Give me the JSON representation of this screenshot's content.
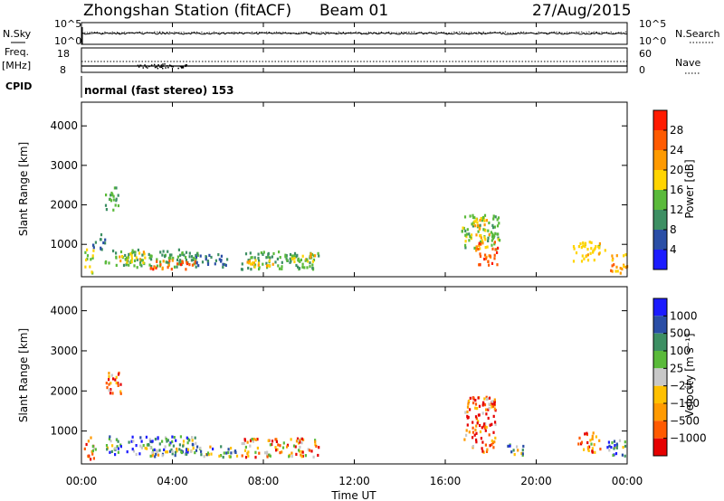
{
  "header": {
    "title": "Zhongshan Station (fitACF)",
    "beam": "Beam 01",
    "date": "27/Aug/2015"
  },
  "param_panels": {
    "noise": {
      "left_label": "N.Sky",
      "right_label": "N.Search",
      "left_ticks": [
        "10^5",
        "10^0"
      ],
      "right_ticks": [
        "10^5",
        "10^0"
      ]
    },
    "freq": {
      "left_label_1": "Freq.",
      "left_label_2": "[MHz]",
      "right_label": "Nave",
      "left_ticks": [
        "18",
        "8"
      ],
      "right_ticks": [
        "60",
        "0"
      ]
    },
    "cpid": {
      "label": "CPID",
      "text": "normal (fast stereo) 153"
    }
  },
  "colors": {
    "power": [
      "#1c1cff",
      "#2a4ea6",
      "#3d8f63",
      "#5aba3a",
      "#ffd400",
      "#ff9a00",
      "#ff5a00",
      "#ff1a00"
    ],
    "velocity": [
      "#e60000",
      "#ff5a00",
      "#ff9a00",
      "#ffc000",
      "#c8c8c8",
      "#5aba3a",
      "#3d8f63",
      "#2a4ea6",
      "#1c1cff"
    ]
  },
  "chart_data": [
    {
      "type": "heatmap",
      "name": "power",
      "ylabel": "Slant Range [km]",
      "yticks": [
        "4000",
        "3000",
        "2000",
        "1000"
      ],
      "xticks": [
        "00:00",
        "04:00",
        "08:00",
        "12:00",
        "16:00",
        "20:00",
        "00:00"
      ],
      "ylim": [
        180,
        4600
      ],
      "xlim": [
        0,
        24
      ],
      "colorbar_label": "Power [dB]",
      "colorbar_ticks": [
        "28",
        "24",
        "20",
        "16",
        "12",
        "8",
        "4"
      ],
      "colorbar_range": [
        0,
        32
      ],
      "blobs": [
        {
          "t": [
            1.0,
            5.1
          ],
          "r": [
            450,
            900
          ],
          "v": 12
        },
        {
          "t": [
            3.0,
            5.0
          ],
          "r": [
            400,
            650
          ],
          "v": 26
        },
        {
          "t": [
            1.6,
            2.8
          ],
          "r": [
            550,
            850
          ],
          "v": 18
        },
        {
          "t": [
            5.0,
            6.4
          ],
          "r": [
            450,
            800
          ],
          "v": 8
        },
        {
          "t": [
            7.0,
            10.4
          ],
          "r": [
            400,
            850
          ],
          "v": 12
        },
        {
          "t": [
            7.2,
            8.6
          ],
          "r": [
            450,
            650
          ],
          "v": 20
        },
        {
          "t": [
            9.2,
            10.3
          ],
          "r": [
            550,
            800
          ],
          "v": 18
        },
        {
          "t": [
            0.1,
            0.5
          ],
          "r": [
            300,
            900
          ],
          "v": 16
        },
        {
          "t": [
            1.0,
            1.6
          ],
          "r": [
            1900,
            2500
          ],
          "v": 12
        },
        {
          "t": [
            16.7,
            18.4
          ],
          "r": [
            900,
            1800
          ],
          "v": 14
        },
        {
          "t": [
            17.3,
            18.3
          ],
          "r": [
            500,
            1100
          ],
          "v": 26
        },
        {
          "t": [
            17.2,
            17.9
          ],
          "r": [
            1200,
            1700
          ],
          "v": 20
        },
        {
          "t": [
            21.6,
            23.0
          ],
          "r": [
            600,
            1100
          ],
          "v": 18
        },
        {
          "t": [
            23.2,
            24.0
          ],
          "r": [
            300,
            800
          ],
          "v": 22
        },
        {
          "t": [
            0.4,
            1.0
          ],
          "r": [
            900,
            1300
          ],
          "v": 8
        }
      ]
    },
    {
      "type": "heatmap",
      "name": "velocity",
      "ylabel": "Slant Range [km]",
      "yticks": [
        "4000",
        "3000",
        "2000",
        "1000"
      ],
      "xticks": [
        "00:00",
        "04:00",
        "08:00",
        "12:00",
        "16:00",
        "20:00",
        "00:00"
      ],
      "xlabel": "Time UT",
      "ylim": [
        180,
        4600
      ],
      "xlim": [
        0,
        24
      ],
      "colorbar_label": "Velocity [m s⁻¹]",
      "colorbar_ticks": [
        "1000",
        "500",
        "100",
        "25",
        "−25",
        "−100",
        "−500",
        "−1000"
      ],
      "blobs": [
        {
          "t": [
            1.0,
            5.1
          ],
          "r": [
            450,
            900
          ],
          "v": 6
        },
        {
          "t": [
            3.0,
            5.0
          ],
          "r": [
            380,
            600
          ],
          "v": 5
        },
        {
          "t": [
            5.0,
            7.0
          ],
          "r": [
            380,
            650
          ],
          "v": 5
        },
        {
          "t": [
            7.0,
            10.4
          ],
          "r": [
            380,
            850
          ],
          "v": 2
        },
        {
          "t": [
            1.0,
            1.7
          ],
          "r": [
            1900,
            2500
          ],
          "v": 1
        },
        {
          "t": [
            16.8,
            18.2
          ],
          "r": [
            500,
            1900
          ],
          "v": 1
        },
        {
          "t": [
            18.6,
            19.4
          ],
          "r": [
            400,
            700
          ],
          "v": 5
        },
        {
          "t": [
            21.8,
            22.8
          ],
          "r": [
            500,
            1000
          ],
          "v": 2
        },
        {
          "t": [
            23.0,
            24.0
          ],
          "r": [
            400,
            800
          ],
          "v": 6
        },
        {
          "t": [
            0.1,
            0.6
          ],
          "r": [
            300,
            900
          ],
          "v": 2
        }
      ]
    }
  ]
}
